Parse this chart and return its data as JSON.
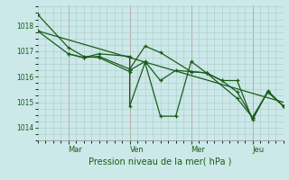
{
  "background_color": "#cce8e8",
  "grid_color": "#aacccc",
  "line_color": "#1a5c1a",
  "xlabel": "Pression niveau de la mer( hPa )",
  "ylim": [
    1013.5,
    1018.8
  ],
  "yticks": [
    1014,
    1015,
    1016,
    1017,
    1018
  ],
  "xlim": [
    0,
    96
  ],
  "day_labels": [
    "Mar",
    "Ven",
    "Mer",
    "Jeu"
  ],
  "day_positions": [
    12,
    36,
    60,
    84
  ],
  "vline_positions": [
    12,
    36,
    60,
    84
  ],
  "vline_color": "#cc8888",
  "series1_x": [
    0,
    12,
    18,
    24,
    36,
    36,
    42,
    48,
    54,
    60,
    66,
    72,
    78,
    84,
    90,
    96
  ],
  "series1_y": [
    1018.45,
    1017.15,
    1016.8,
    1016.75,
    1016.2,
    1014.85,
    1016.55,
    1014.45,
    1014.45,
    1016.6,
    1016.15,
    1015.85,
    1015.85,
    1014.3,
    1015.45,
    1014.85
  ],
  "series2_x": [
    0,
    12,
    18,
    24,
    36,
    36,
    42,
    48,
    54,
    60,
    66,
    72,
    78,
    84,
    90,
    96
  ],
  "series2_y": [
    1017.8,
    1016.9,
    1016.75,
    1016.9,
    1016.8,
    1016.25,
    1016.6,
    1015.85,
    1016.25,
    1016.2,
    1016.15,
    1015.85,
    1015.4,
    1014.4,
    1015.4,
    1014.85
  ],
  "trend_x": [
    0,
    96
  ],
  "trend_y": [
    1017.8,
    1015.0
  ],
  "series3_x": [
    12,
    18,
    24,
    36,
    42,
    48,
    60,
    66,
    78,
    84,
    90,
    96
  ],
  "series3_y": [
    1016.9,
    1016.75,
    1016.8,
    1016.3,
    1017.2,
    1016.95,
    1016.2,
    1016.15,
    1015.15,
    1014.4,
    1015.4,
    1014.85
  ]
}
